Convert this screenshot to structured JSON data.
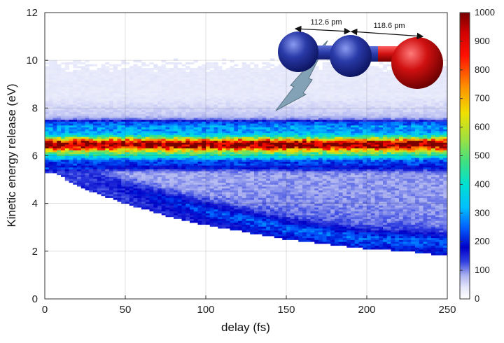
{
  "chart_data": {
    "type": "heatmap",
    "xlabel": "delay (fs)",
    "ylabel": "Kinetic energy release (eV)",
    "xlim": [
      0,
      250
    ],
    "ylim": [
      0,
      12
    ],
    "x_ticks": [
      "0",
      "50",
      "100",
      "150",
      "200",
      "250"
    ],
    "y_ticks": [
      "0",
      "2",
      "4",
      "6",
      "8",
      "10",
      "12"
    ],
    "grid": true,
    "colorbar": {
      "range": [
        0,
        1000
      ],
      "ticks": [
        "0",
        "100",
        "200",
        "300",
        "400",
        "500",
        "600",
        "700",
        "800",
        "900",
        "1000"
      ]
    },
    "features": {
      "main_band": {
        "center_ev": 6.5,
        "peak_counts": 950,
        "upper_edge_ev": 7.4,
        "lower_edge_ev": 5.5
      },
      "diffuse_background": {
        "upper_edge_ev": 9.5,
        "counts": 40
      },
      "dissociation_branch": {
        "delay_fs": [
          5,
          25,
          50,
          75,
          100,
          125,
          150,
          175,
          200,
          225,
          250
        ],
        "lower_edge_ev": [
          5.3,
          4.6,
          4.0,
          3.5,
          3.1,
          2.8,
          2.5,
          2.3,
          2.1,
          2.0,
          1.8
        ],
        "counts": 120
      }
    },
    "annotations": [
      "112.6 pm",
      "118.6 pm"
    ]
  },
  "inset": {
    "molecule": "N-N-O molecule (two blue N atoms, red O atom)",
    "colors": {
      "nitrogen": "#2a3aa8",
      "oxygen": "#d01010",
      "laser": "#7f9fb3"
    }
  }
}
